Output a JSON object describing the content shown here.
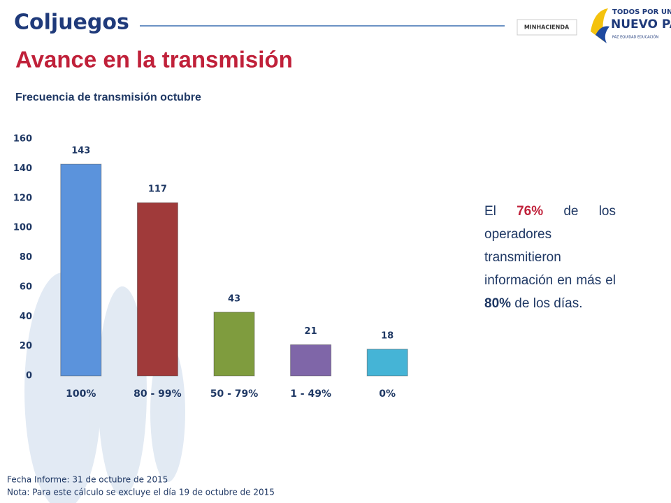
{
  "header": {
    "brand": "Coljuegos",
    "ministry": "MINHACIENDA",
    "slogan_top": "TODOS POR UN",
    "slogan_main": "NUEVO PAÍS",
    "slogan_sub": "PAZ  EQUIDAD  EDUCACIÓN"
  },
  "chart_data": {
    "type": "bar",
    "title": "Avance en la transmisión",
    "subtitle": "Frecuencia de transmisión octubre",
    "categories": [
      "100%",
      "80 - 99%",
      "50 - 79%",
      "1 - 49%",
      "0%"
    ],
    "values": [
      143,
      117,
      43,
      21,
      18
    ],
    "colors": [
      "#5b93dc",
      "#a03a3a",
      "#7f9c3e",
      "#7f66a8",
      "#45b4d6"
    ],
    "ylim": [
      0,
      160
    ],
    "yticks": [
      0,
      20,
      40,
      60,
      80,
      100,
      120,
      140,
      160
    ],
    "grid": false
  },
  "note": {
    "parts": [
      "El ",
      "76%",
      " de los operadores transmitieron información en más el ",
      "80%",
      " de los días."
    ]
  },
  "footer": {
    "date": "Fecha Informe: 31 de octubre de 2015",
    "remark": "Nota: Para este cálculo se excluye el día 19 de octubre de 2015"
  }
}
